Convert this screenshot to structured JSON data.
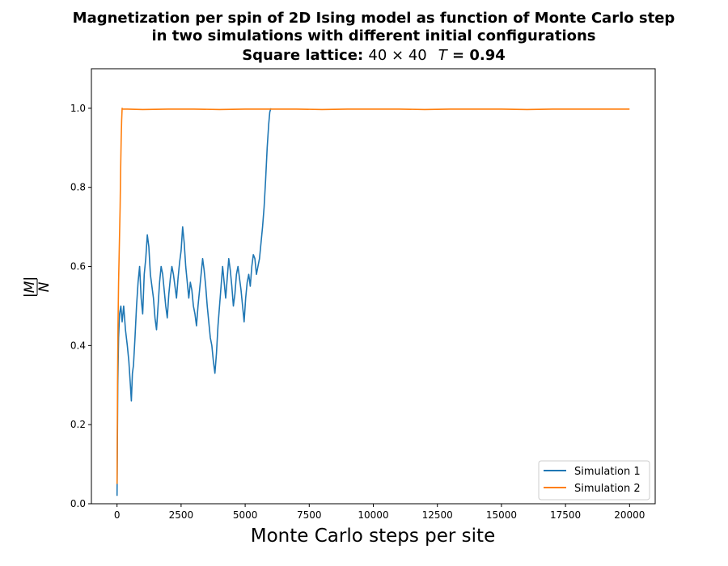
{
  "chart_data": {
    "type": "line",
    "title_lines": [
      "Magnetization per spin of 2D Ising model as function of Monte Carlo step",
      "in two simulations with different initial configurations"
    ],
    "subtitle_prefix": "Square lattice: ",
    "subtitle_lattice": "40 × 40",
    "subtitle_T_symbol": "T",
    "subtitle_T_value": " = 0.94",
    "xlabel": "Monte Carlo steps per site",
    "ylabel_numerator": "|M|",
    "ylabel_denominator": "N",
    "xlim": [
      -1000,
      21000
    ],
    "ylim": [
      0.0,
      1.1
    ],
    "xticks": [
      0,
      2500,
      5000,
      7500,
      10000,
      12500,
      15000,
      17500,
      20000
    ],
    "yticks": [
      0.0,
      0.2,
      0.4,
      0.6,
      0.8,
      1.0
    ],
    "ytick_labels": [
      "0.0",
      "0.2",
      "0.4",
      "0.6",
      "0.8",
      "1.0"
    ],
    "grid": false,
    "legend_position": "bottom-right",
    "series": [
      {
        "name": "Simulation 1",
        "color": "#1f77b4",
        "x": [
          0,
          30,
          60,
          100,
          150,
          200,
          260,
          330,
          400,
          460,
          520,
          560,
          600,
          640,
          700,
          760,
          820,
          880,
          940,
          1000,
          1060,
          1120,
          1180,
          1240,
          1300,
          1360,
          1420,
          1480,
          1540,
          1600,
          1660,
          1720,
          1780,
          1840,
          1900,
          1960,
          2020,
          2080,
          2140,
          2200,
          2260,
          2320,
          2380,
          2440,
          2500,
          2560,
          2620,
          2680,
          2740,
          2800,
          2860,
          2920,
          2980,
          3040,
          3100,
          3160,
          3220,
          3280,
          3340,
          3400,
          3460,
          3520,
          3580,
          3640,
          3700,
          3760,
          3820,
          3880,
          3940,
          4000,
          4060,
          4120,
          4180,
          4240,
          4300,
          4360,
          4420,
          4480,
          4540,
          4600,
          4660,
          4720,
          4780,
          4840,
          4900,
          4960,
          5020,
          5080,
          5140,
          5200,
          5260,
          5320,
          5380,
          5440,
          5500,
          5560,
          5620,
          5680,
          5740,
          5800,
          5860,
          5920,
          5960,
          6000
        ],
        "y": [
          0.02,
          0.3,
          0.42,
          0.48,
          0.5,
          0.46,
          0.5,
          0.44,
          0.4,
          0.36,
          0.3,
          0.26,
          0.33,
          0.35,
          0.42,
          0.5,
          0.56,
          0.6,
          0.52,
          0.48,
          0.58,
          0.62,
          0.68,
          0.65,
          0.58,
          0.55,
          0.52,
          0.47,
          0.44,
          0.5,
          0.56,
          0.6,
          0.58,
          0.54,
          0.5,
          0.47,
          0.53,
          0.57,
          0.6,
          0.58,
          0.55,
          0.52,
          0.57,
          0.61,
          0.64,
          0.7,
          0.66,
          0.6,
          0.56,
          0.52,
          0.56,
          0.54,
          0.5,
          0.48,
          0.45,
          0.5,
          0.54,
          0.58,
          0.62,
          0.59,
          0.55,
          0.5,
          0.46,
          0.42,
          0.4,
          0.36,
          0.33,
          0.38,
          0.45,
          0.5,
          0.55,
          0.6,
          0.56,
          0.52,
          0.57,
          0.62,
          0.59,
          0.55,
          0.5,
          0.53,
          0.58,
          0.6,
          0.57,
          0.54,
          0.5,
          0.46,
          0.52,
          0.56,
          0.58,
          0.55,
          0.6,
          0.63,
          0.62,
          0.58,
          0.6,
          0.62,
          0.66,
          0.7,
          0.75,
          0.82,
          0.9,
          0.96,
          0.99,
          1.0
        ]
      },
      {
        "name": "Simulation 2",
        "color": "#ff7f0e",
        "x": [
          0,
          20,
          40,
          60,
          80,
          100,
          120,
          140,
          160,
          180,
          200,
          220,
          400,
          1000,
          2000,
          3000,
          4000,
          5000,
          6000,
          7000,
          8000,
          9000,
          10000,
          11000,
          12000,
          13000,
          14000,
          15000,
          16000,
          17000,
          18000,
          19000,
          20000
        ],
        "y": [
          0.05,
          0.3,
          0.45,
          0.56,
          0.62,
          0.68,
          0.75,
          0.84,
          0.92,
          0.97,
          1.0,
          0.998,
          0.998,
          0.997,
          0.998,
          0.998,
          0.997,
          0.998,
          0.998,
          0.998,
          0.997,
          0.998,
          0.998,
          0.998,
          0.997,
          0.998,
          0.998,
          0.998,
          0.997,
          0.998,
          0.998,
          0.998,
          0.998
        ]
      }
    ]
  }
}
